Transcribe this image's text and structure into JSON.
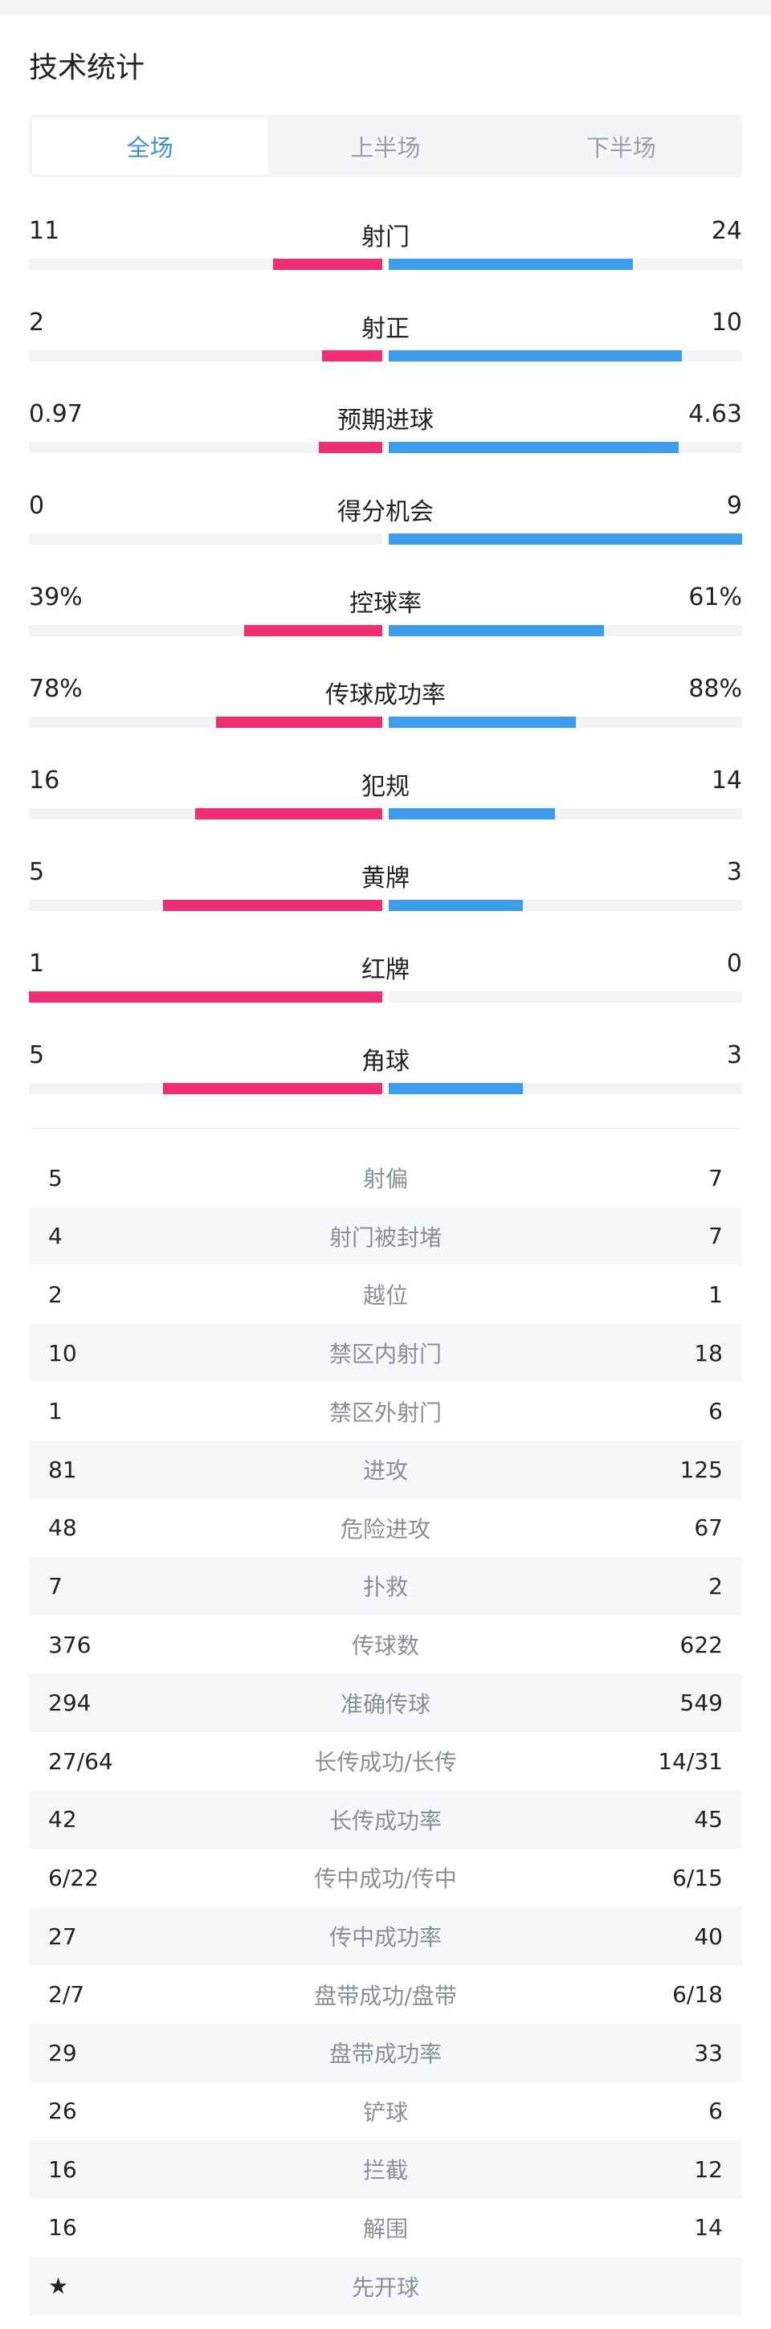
{
  "title": "技术统计",
  "tabs": [
    {
      "label": "全场",
      "active": true
    },
    {
      "label": "上半场",
      "active": false
    },
    {
      "label": "下半场",
      "active": false
    }
  ],
  "colors": {
    "home": "#ef2e73",
    "away": "#3d9cec",
    "active_tab": "#3d8fe0"
  },
  "bar_stats": [
    {
      "name": "射门",
      "home": "11",
      "away": "24",
      "home_ratio": 0.31,
      "away_ratio": 0.69
    },
    {
      "name": "射正",
      "home": "2",
      "away": "10",
      "home_ratio": 0.17,
      "away_ratio": 0.83
    },
    {
      "name": "预期进球",
      "home": "0.97",
      "away": "4.63",
      "home_ratio": 0.18,
      "away_ratio": 0.82
    },
    {
      "name": "得分机会",
      "home": "0",
      "away": "9",
      "home_ratio": 0.0,
      "away_ratio": 1.0
    },
    {
      "name": "控球率",
      "home": "39%",
      "away": "61%",
      "home_ratio": 0.39,
      "away_ratio": 0.61
    },
    {
      "name": "传球成功率",
      "home": "78%",
      "away": "88%",
      "home_ratio": 0.47,
      "away_ratio": 0.53
    },
    {
      "name": "犯规",
      "home": "16",
      "away": "14",
      "home_ratio": 0.53,
      "away_ratio": 0.47
    },
    {
      "name": "黄牌",
      "home": "5",
      "away": "3",
      "home_ratio": 0.62,
      "away_ratio": 0.38
    },
    {
      "name": "红牌",
      "home": "1",
      "away": "0",
      "home_ratio": 1.0,
      "away_ratio": 0.0
    },
    {
      "name": "角球",
      "home": "5",
      "away": "3",
      "home_ratio": 0.62,
      "away_ratio": 0.38
    }
  ],
  "table_stats": [
    {
      "name": "射偏",
      "home": "5",
      "away": "7"
    },
    {
      "name": "射门被封堵",
      "home": "4",
      "away": "7"
    },
    {
      "name": "越位",
      "home": "2",
      "away": "1"
    },
    {
      "name": "禁区内射门",
      "home": "10",
      "away": "18"
    },
    {
      "name": "禁区外射门",
      "home": "1",
      "away": "6"
    },
    {
      "name": "进攻",
      "home": "81",
      "away": "125"
    },
    {
      "name": "危险进攻",
      "home": "48",
      "away": "67"
    },
    {
      "name": "扑救",
      "home": "7",
      "away": "2"
    },
    {
      "name": "传球数",
      "home": "376",
      "away": "622"
    },
    {
      "name": "准确传球",
      "home": "294",
      "away": "549"
    },
    {
      "name": "长传成功/长传",
      "home": "27/64",
      "away": "14/31"
    },
    {
      "name": "长传成功率",
      "home": "42",
      "away": "45"
    },
    {
      "name": "传中成功/传中",
      "home": "6/22",
      "away": "6/15"
    },
    {
      "name": "传中成功率",
      "home": "27",
      "away": "40"
    },
    {
      "name": "盘带成功/盘带",
      "home": "2/7",
      "away": "6/18"
    },
    {
      "name": "盘带成功率",
      "home": "29",
      "away": "33"
    },
    {
      "name": "铲球",
      "home": "26",
      "away": "6"
    },
    {
      "name": "拦截",
      "home": "16",
      "away": "12"
    },
    {
      "name": "解围",
      "home": "16",
      "away": "14"
    },
    {
      "name": "先开球",
      "home": "★",
      "away": ""
    }
  ]
}
